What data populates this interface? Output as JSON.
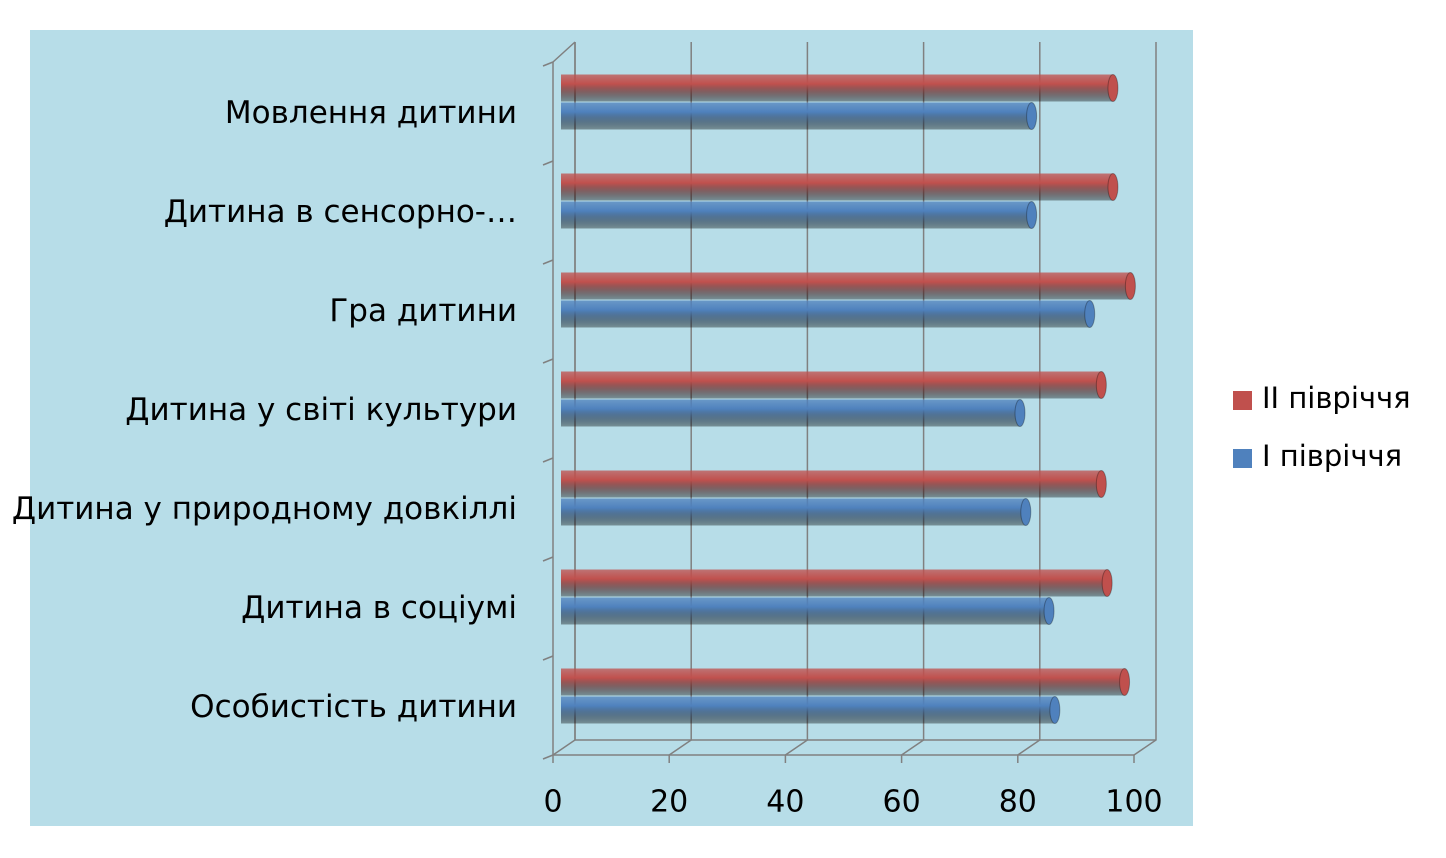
{
  "chart_data": {
    "type": "bar",
    "orientation": "horizontal",
    "categories": [
      "Мовлення дитини",
      "Дитина в сенсорно-…",
      "Гра дитини",
      "Дитина у світі культури",
      "Дитина у природному довкіллі",
      "Дитина в соціумі",
      "Особистість дитини"
    ],
    "series": [
      {
        "name": "II півріччя",
        "color": "#c0504d",
        "values": [
          95,
          95,
          98,
          93,
          93,
          94,
          97
        ]
      },
      {
        "name": "I півріччя",
        "color": "#4f81bd",
        "values": [
          81,
          81,
          91,
          79,
          80,
          84,
          85
        ]
      }
    ],
    "xlim": [
      0,
      100
    ],
    "xticks": [
      0,
      20,
      40,
      60,
      80,
      100
    ],
    "grid": true,
    "legend": "right"
  }
}
